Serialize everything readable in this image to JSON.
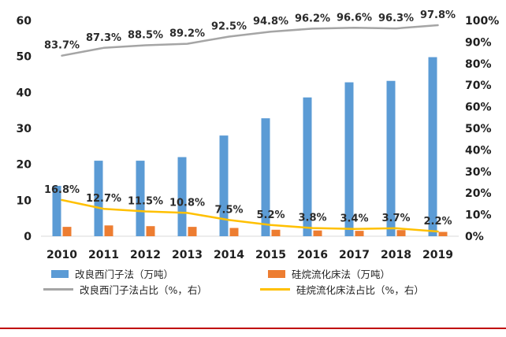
{
  "chart_data": {
    "type": "bar",
    "categories": [
      "2010",
      "2011",
      "2012",
      "2013",
      "2014",
      "2015",
      "2016",
      "2017",
      "2018",
      "2019"
    ],
    "ylim_left": [
      0,
      60
    ],
    "yticks_left": [
      "0",
      "10",
      "20",
      "30",
      "40",
      "50",
      "60"
    ],
    "ylim_right": [
      0,
      100
    ],
    "yticks_right": [
      "0%",
      "10%",
      "20%",
      "30%",
      "40%",
      "50%",
      "60%",
      "70%",
      "80%",
      "90%",
      "100%"
    ],
    "grid": false,
    "legend_position": "bottom",
    "series": [
      {
        "name": "改良西门子法（万吨）",
        "type": "bar",
        "axis": "left",
        "color": "#5B9BD5",
        "values": [
          14,
          21,
          21,
          22,
          28,
          32.8,
          38.6,
          42.8,
          43.2,
          49.8
        ]
      },
      {
        "name": "硅烷流化床法（万吨）",
        "type": "bar",
        "axis": "left",
        "color": "#ED7D31",
        "values": [
          2.6,
          3.0,
          2.8,
          2.6,
          2.3,
          1.8,
          1.6,
          1.5,
          1.7,
          1.2
        ]
      },
      {
        "name": "改良西门子法占比（%，右）",
        "type": "line",
        "axis": "right",
        "color": "#A5A5A5",
        "values": [
          83.7,
          87.3,
          88.5,
          89.2,
          92.5,
          94.8,
          96.2,
          96.6,
          96.3,
          97.8
        ],
        "labels": [
          "83.7%",
          "87.3%",
          "88.5%",
          "89.2%",
          "92.5%",
          "94.8%",
          "96.2%",
          "96.6%",
          "96.3%",
          "97.8%"
        ]
      },
      {
        "name": "硅烷流化床法占比（%，右）",
        "type": "line",
        "axis": "right",
        "color": "#FFC000",
        "values": [
          16.8,
          12.7,
          11.5,
          10.8,
          7.5,
          5.2,
          3.8,
          3.4,
          3.7,
          2.2
        ],
        "labels": [
          "16.8%",
          "12.7%",
          "11.5%",
          "10.8%",
          "7.5%",
          "5.2%",
          "3.8%",
          "3.4%",
          "3.7%",
          "2.2%"
        ]
      }
    ]
  },
  "legend": {
    "items": [
      {
        "label": "改良西门子法（万吨）",
        "kind": "bar",
        "color": "#5B9BD5"
      },
      {
        "label": "硅烷流化床法（万吨）",
        "kind": "bar",
        "color": "#ED7D31"
      },
      {
        "label": "改良西门子法占比（%，右）",
        "kind": "line",
        "color": "#A5A5A5"
      },
      {
        "label": "硅烷流化床法占比（%，右）",
        "kind": "line",
        "color": "#FFC000"
      }
    ]
  },
  "decoration": {
    "bottom_rule_color": "#C00000"
  }
}
